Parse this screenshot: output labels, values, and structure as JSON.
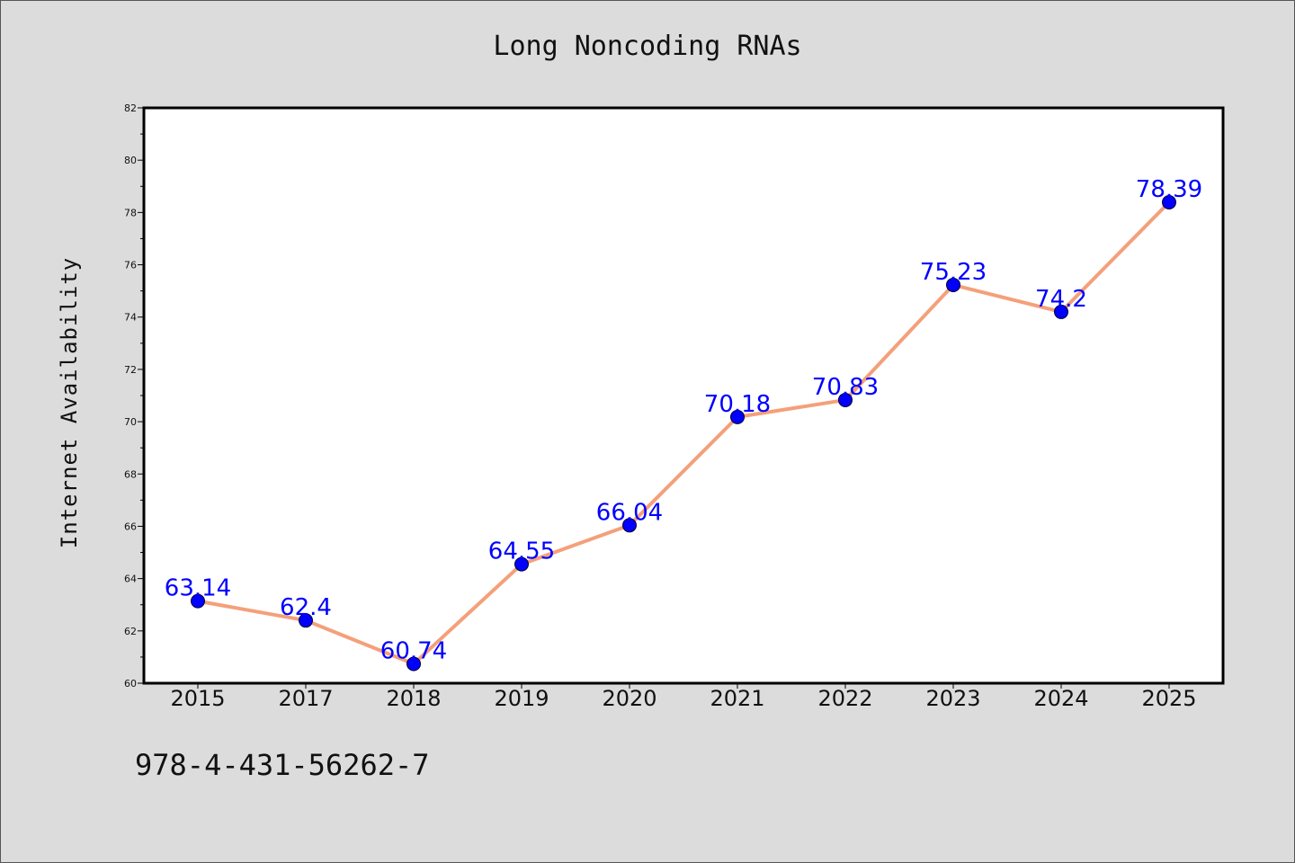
{
  "chart_data": {
    "type": "line",
    "title": "Long Noncoding RNAs",
    "xlabel": "",
    "ylabel": "Internet Availability",
    "categories": [
      "2015",
      "2017",
      "2018",
      "2019",
      "2020",
      "2021",
      "2022",
      "2023",
      "2024",
      "2025"
    ],
    "series": [
      {
        "values": [
          63.14,
          62.4,
          60.74,
          64.55,
          66.04,
          70.18,
          70.83,
          75.23,
          74.2,
          78.39
        ],
        "data_labels": [
          "63.14",
          "62.4",
          "60.74",
          "64.55",
          "66.04",
          "70.18",
          "70.83",
          "75.23",
          "74.2",
          "78.39"
        ]
      }
    ],
    "ylim": [
      60,
      82
    ],
    "yticks": [
      60,
      62,
      64,
      66,
      68,
      70,
      72,
      74,
      76,
      78,
      80,
      82
    ],
    "grid": false,
    "colors": {
      "line": "#f4a07a",
      "marker": "#0000ff",
      "label": "#0000ff",
      "background": "#dcdcdc",
      "plot_background": "#ffffff"
    }
  },
  "footer": {
    "code": "978-4-431-56262-7"
  }
}
